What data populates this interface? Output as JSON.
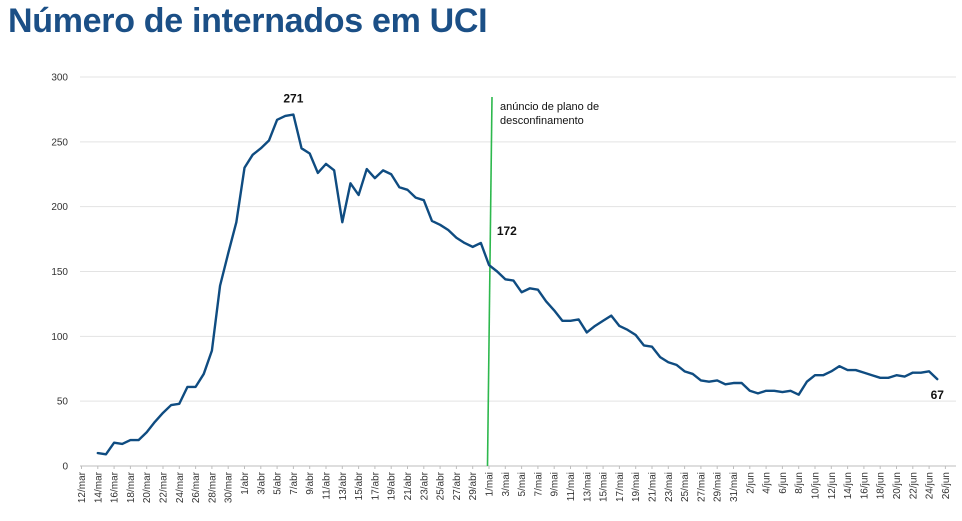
{
  "chart_data": {
    "type": "line",
    "title": "Número de internados em UCI",
    "xlabel": "",
    "ylabel": "",
    "ylim": [
      0,
      300
    ],
    "yticks": [
      "0",
      "50",
      "100",
      "150",
      "200",
      "250",
      "300"
    ],
    "grid": true,
    "colors": {
      "line": "#0f4c81",
      "event": "#2db84d",
      "grid": "#e3e3e3",
      "title": "#1b4f86"
    },
    "x_tick_labels": [
      "12/mar",
      "14/mar",
      "16/mar",
      "18/mar",
      "20/mar",
      "22/mar",
      "24/mar",
      "26/mar",
      "28/mar",
      "30/mar",
      "1/abr",
      "3/abr",
      "5/abr",
      "7/abr",
      "9/abr",
      "11/abr",
      "13/abr",
      "15/abr",
      "17/abr",
      "19/abr",
      "21/abr",
      "23/abr",
      "25/abr",
      "27/abr",
      "29/abr",
      "1/mai",
      "3/mai",
      "5/mai",
      "7/mai",
      "9/mai",
      "11/mai",
      "13/mai",
      "15/mai",
      "17/mai",
      "19/mai",
      "21/mai",
      "23/mai",
      "25/mai",
      "27/mai",
      "29/mai",
      "31/mai",
      "2/jun",
      "4/jun",
      "6/jun",
      "8/jun",
      "10/jun",
      "12/jun",
      "14/jun",
      "16/jun",
      "18/jun",
      "20/jun",
      "22/jun",
      "24/jun",
      "26/jun"
    ],
    "series_start": "14/mar",
    "series_end": "25/jun",
    "values": [
      10,
      9,
      18,
      17,
      20,
      20,
      26,
      34,
      41,
      47,
      48,
      61,
      61,
      71,
      89,
      139,
      164,
      188,
      230,
      240,
      245,
      251,
      267,
      270,
      271,
      245,
      241,
      226,
      233,
      228,
      188,
      218,
      209,
      229,
      222,
      228,
      225,
      215,
      213,
      207,
      205,
      189,
      186,
      182,
      176,
      172,
      169,
      172,
      155,
      150,
      144,
      143,
      134,
      137,
      136,
      127,
      120,
      112,
      112,
      113,
      103,
      108,
      112,
      116,
      108,
      105,
      101,
      93,
      92,
      84,
      80,
      78,
      73,
      71,
      66,
      65,
      66,
      63,
      64,
      64,
      58,
      56,
      58,
      58,
      57,
      58,
      55,
      65,
      70,
      70,
      73,
      77,
      74,
      74,
      72,
      70,
      68,
      68,
      70,
      69,
      72,
      72,
      73,
      67
    ],
    "data_labels": [
      {
        "date": "7/abr",
        "value": 271,
        "text": "271"
      },
      {
        "date": "30/abr",
        "value": 172,
        "text": "172"
      },
      {
        "date": "25/jun",
        "value": 67,
        "text": "67"
      }
    ],
    "annotation": {
      "date": "1/mai",
      "lines": [
        "anúncio de plano de",
        "desconfinamento"
      ]
    }
  }
}
